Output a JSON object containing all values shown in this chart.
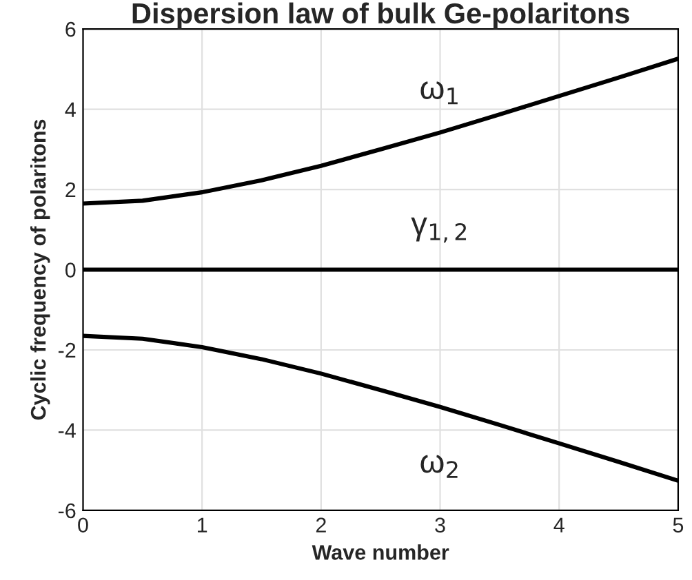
{
  "chart_data": {
    "type": "line",
    "title": "Dispersion law of bulk Ge-polaritons",
    "xlabel": "Wave number",
    "ylabel": "Cyclic frequency of polaritons",
    "x": [
      0,
      0.5,
      1,
      1.5,
      2,
      2.5,
      3,
      3.5,
      4,
      4.5,
      5
    ],
    "series": [
      {
        "name": "ω$_{1}$",
        "color": "#000000",
        "values": [
          1.65,
          1.72,
          1.93,
          2.23,
          2.59,
          3.0,
          3.42,
          3.87,
          4.33,
          4.79,
          5.26
        ]
      },
      {
        "name": "γ$_{1,2}$",
        "color": "#000000",
        "values": [
          0,
          0,
          0,
          0,
          0,
          0,
          0,
          0,
          0,
          0,
          0
        ]
      },
      {
        "name": "ω$_{2}$",
        "color": "#000000",
        "values": [
          -1.65,
          -1.72,
          -1.93,
          -2.23,
          -2.59,
          -3.0,
          -3.42,
          -3.87,
          -4.33,
          -4.79,
          -5.26
        ]
      }
    ],
    "xlim": [
      0,
      5
    ],
    "ylim": [
      -6,
      6
    ],
    "xticks": [
      0,
      1,
      2,
      3,
      4,
      5
    ],
    "yticks": [
      -6,
      -4,
      -2,
      0,
      2,
      4,
      6
    ],
    "grid": true,
    "legend": false,
    "marker": "none",
    "line_style": "solid"
  }
}
